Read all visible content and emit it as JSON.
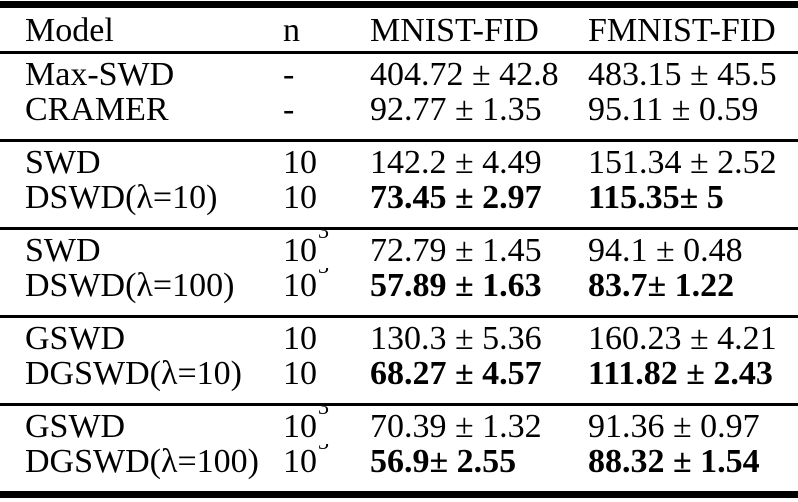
{
  "colors": {
    "background": "#ffffff",
    "text": "#000000",
    "rules": "#000000"
  },
  "table": {
    "headers": {
      "model": "Model",
      "n": "n",
      "mnist": "MNIST-FID",
      "fmnist": "FMNIST-FID"
    },
    "groups": [
      {
        "rows": [
          {
            "model": "Max-SWD",
            "n": "-",
            "n_sup": "",
            "mnist": "404.72 ± 42.8",
            "fmnist": "483.15 ± 45.5",
            "bold": false
          },
          {
            "model": "CRAMER",
            "n": "-",
            "n_sup": "",
            "mnist": "92.77 ± 1.35",
            "fmnist": "95.11 ± 0.59",
            "bold": false
          }
        ]
      },
      {
        "rows": [
          {
            "model": "SWD",
            "n": "10",
            "n_sup": "",
            "mnist": "142.2 ± 4.49",
            "fmnist": "151.34 ± 2.52",
            "bold": false
          },
          {
            "model": "DSWD(λ=10)",
            "n": "10",
            "n_sup": "",
            "mnist": "73.45 ± 2.97",
            "fmnist": "115.35± 5",
            "bold": true
          }
        ]
      },
      {
        "rows": [
          {
            "model": "SWD",
            "n": "10",
            "n_sup": "3",
            "mnist": "72.79 ± 1.45",
            "fmnist": "94.1 ± 0.48",
            "bold": false
          },
          {
            "model": "DSWD(λ=100)",
            "n": "10",
            "n_sup": "3",
            "mnist": "57.89 ± 1.63",
            "fmnist": "83.7± 1.22",
            "bold": true
          }
        ]
      },
      {
        "rows": [
          {
            "model": "GSWD",
            "n": "10",
            "n_sup": "",
            "mnist": "130.3 ± 5.36",
            "fmnist": "160.23 ± 4.21",
            "bold": false
          },
          {
            "model": "DGSWD(λ=10)",
            "n": "10",
            "n_sup": "",
            "mnist": "68.27 ± 4.57",
            "fmnist": "111.82 ± 2.43",
            "bold": true
          }
        ]
      },
      {
        "rows": [
          {
            "model": "GSWD",
            "n": "10",
            "n_sup": "3",
            "mnist": "70.39 ± 1.32",
            "fmnist": "91.36 ± 0.97",
            "bold": false
          },
          {
            "model": "DGSWD(λ=100)",
            "n": "10",
            "n_sup": "3",
            "mnist": "56.9± 2.55",
            "fmnist": "88.32 ± 1.54",
            "bold": true
          }
        ]
      }
    ]
  }
}
